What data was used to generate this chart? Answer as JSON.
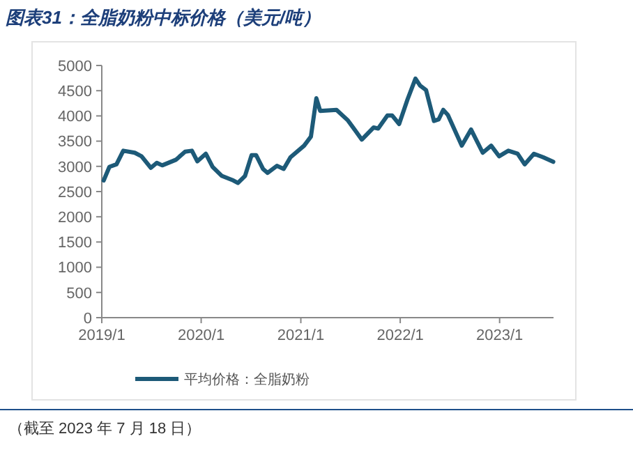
{
  "chart_data": {
    "type": "line",
    "title": "图表31：全脂奶粉中标价格（美元/吨）",
    "x": [
      "2019-01-08",
      "2019-01-29",
      "2019-02-24",
      "2019-03-21",
      "2019-05-02",
      "2019-05-27",
      "2019-06-30",
      "2019-07-22",
      "2019-08-11",
      "2019-09-30",
      "2019-11-03",
      "2019-11-28",
      "2019-12-18",
      "2020-01-18",
      "2020-02-12",
      "2020-03-17",
      "2020-04-28",
      "2020-05-15",
      "2020-06-10",
      "2020-07-04",
      "2020-07-21",
      "2020-08-15",
      "2020-09-01",
      "2020-10-05",
      "2020-10-30",
      "2020-11-24",
      "2021-01-13",
      "2021-02-07",
      "2021-02-27",
      "2021-03-13",
      "2021-05-12",
      "2021-06-23",
      "2021-08-13",
      "2021-09-25",
      "2021-10-12",
      "2021-11-15",
      "2021-12-02",
      "2021-12-28",
      "2022-01-28",
      "2022-02-26",
      "2022-03-15",
      "2022-04-06",
      "2022-05-05",
      "2022-05-22",
      "2022-06-08",
      "2022-06-25",
      "2022-08-15",
      "2022-09-18",
      "2022-10-31",
      "2022-12-01",
      "2022-12-30",
      "2023-02-02",
      "2023-03-08",
      "2023-04-03",
      "2023-05-07",
      "2023-06-10",
      "2023-07-17"
    ],
    "series": [
      {
        "name": "平均价格：全脂奶粉",
        "color": "#1d5a78",
        "values": [
          2720,
          2990,
          3040,
          3310,
          3270,
          3200,
          2970,
          3070,
          3020,
          3130,
          3290,
          3310,
          3100,
          3250,
          2990,
          2810,
          2720,
          2670,
          2810,
          3220,
          3220,
          2950,
          2870,
          3010,
          2950,
          3180,
          3410,
          3590,
          4350,
          4100,
          4120,
          3910,
          3530,
          3770,
          3750,
          4010,
          4010,
          3840,
          4330,
          4740,
          4600,
          4510,
          3900,
          3930,
          4120,
          4020,
          3410,
          3730,
          3270,
          3410,
          3200,
          3310,
          3250,
          3040,
          3250,
          3180,
          3090
        ]
      }
    ],
    "xlim": [
      "2019-01-01",
      "2023-07-18"
    ],
    "xticks": [
      {
        "value": "2019-01-01",
        "label": "2019/1"
      },
      {
        "value": "2020-01-01",
        "label": "2020/1"
      },
      {
        "value": "2021-01-01",
        "label": "2021/1"
      },
      {
        "value": "2022-01-01",
        "label": "2022/1"
      },
      {
        "value": "2023-01-01",
        "label": "2023/1"
      }
    ],
    "ylim": [
      0,
      5000
    ],
    "yticks": [
      0,
      500,
      1000,
      1500,
      2000,
      2500,
      3000,
      3500,
      4000,
      4500,
      5000
    ],
    "grid": false,
    "legend": "bottom",
    "marker": "none",
    "line_style": "solid",
    "annotations": [
      "（截至 2023 年 7 月 18 日）"
    ]
  }
}
